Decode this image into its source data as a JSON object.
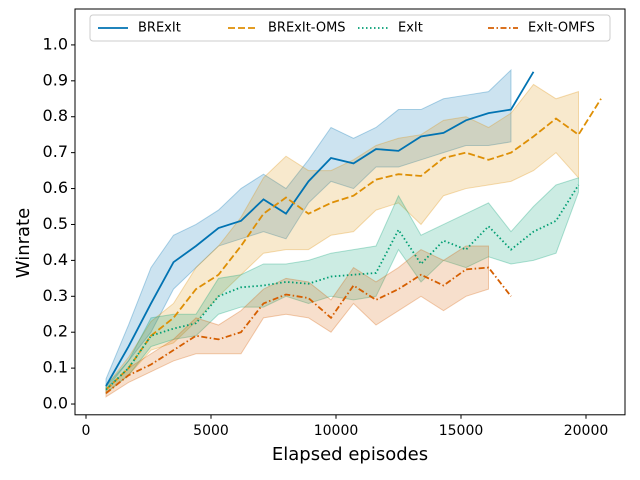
{
  "chart_data": {
    "type": "line",
    "xlabel": "Elapsed episodes",
    "ylabel": "Winrate",
    "xlim": [
      -440,
      21560
    ],
    "ylim": [
      -0.03,
      1.1
    ],
    "xticks": [
      0,
      5000,
      10000,
      15000,
      20000
    ],
    "yticks": [
      {
        "value": 0,
        "label": "0.0"
      },
      {
        "value": 0.1,
        "label": "0.1"
      },
      {
        "value": 0.2,
        "label": "0.2"
      },
      {
        "value": 0.3,
        "label": "0.3"
      },
      {
        "value": 0.4,
        "label": "0.4"
      },
      {
        "value": 0.5,
        "label": "0.5"
      },
      {
        "value": 0.6,
        "label": "0.6"
      },
      {
        "value": 0.7,
        "label": "0.7"
      },
      {
        "value": 0.8,
        "label": "0.8"
      },
      {
        "value": 0.9,
        "label": "0.9"
      },
      {
        "value": 1,
        "label": "1.0"
      }
    ],
    "legend": "upper center",
    "series": [
      {
        "name": "BRExIt",
        "color": "#0173b2",
        "linestyle": "solid",
        "x": [
          800,
          1700,
          2600,
          3500,
          4400,
          5300,
          6200,
          7100,
          8000,
          8900,
          9800,
          10700,
          11600,
          12500,
          13400,
          14300,
          15200,
          16100,
          17000,
          17900
        ],
        "values": [
          0.05,
          0.16,
          0.28,
          0.395,
          0.44,
          0.49,
          0.51,
          0.57,
          0.53,
          0.62,
          0.685,
          0.67,
          0.71,
          0.705,
          0.745,
          0.755,
          0.79,
          0.81,
          0.82,
          0.925
        ],
        "lower": [
          0.04,
          0.12,
          0.2,
          0.32,
          0.38,
          0.44,
          0.46,
          0.48,
          0.46,
          0.56,
          0.62,
          0.6,
          0.66,
          0.66,
          0.68,
          0.7,
          0.72,
          0.72,
          0.73,
          null
        ],
        "upper": [
          0.07,
          0.22,
          0.38,
          0.47,
          0.5,
          0.54,
          0.6,
          0.64,
          0.6,
          0.68,
          0.77,
          0.74,
          0.77,
          0.82,
          0.82,
          0.85,
          0.86,
          0.87,
          0.93,
          null
        ]
      },
      {
        "name": "BRExIt-OMS",
        "color": "#de8f05",
        "linestyle": "dashed",
        "x": [
          800,
          1700,
          2600,
          3500,
          4400,
          5300,
          6200,
          7100,
          8000,
          8900,
          9800,
          10700,
          11600,
          12500,
          13400,
          14300,
          15200,
          16100,
          17000,
          17900,
          18800,
          19700,
          20600
        ],
        "values": [
          0.04,
          0.1,
          0.19,
          0.24,
          0.32,
          0.36,
          0.44,
          0.53,
          0.575,
          0.53,
          0.56,
          0.58,
          0.625,
          0.64,
          0.635,
          0.685,
          0.7,
          0.68,
          0.7,
          0.745,
          0.795,
          0.75,
          0.85
        ],
        "lower": [
          0.03,
          0.08,
          0.15,
          0.17,
          0.23,
          0.3,
          0.36,
          0.42,
          0.43,
          0.43,
          0.47,
          0.48,
          0.54,
          0.56,
          0.5,
          0.58,
          0.6,
          0.61,
          0.62,
          0.65,
          0.7,
          0.63,
          null
        ],
        "upper": [
          0.05,
          0.13,
          0.23,
          0.28,
          0.38,
          0.44,
          0.52,
          0.63,
          0.69,
          0.65,
          0.65,
          0.68,
          0.72,
          0.74,
          0.75,
          0.79,
          0.8,
          0.77,
          0.81,
          0.89,
          0.85,
          0.87,
          null
        ]
      },
      {
        "name": "ExIt",
        "color": "#029e73",
        "linestyle": "dotted",
        "x": [
          800,
          1700,
          2600,
          3500,
          4400,
          5300,
          6200,
          7100,
          8000,
          8900,
          9800,
          10700,
          11600,
          12500,
          13400,
          14300,
          15200,
          16100,
          17000,
          17900,
          18800,
          19700
        ],
        "values": [
          0.04,
          0.1,
          0.19,
          0.21,
          0.225,
          0.3,
          0.325,
          0.33,
          0.34,
          0.335,
          0.355,
          0.36,
          0.365,
          0.485,
          0.39,
          0.455,
          0.43,
          0.495,
          0.43,
          0.48,
          0.51,
          0.61
        ],
        "lower": [
          0.03,
          0.08,
          0.16,
          0.18,
          0.19,
          0.25,
          0.27,
          0.27,
          0.3,
          0.28,
          0.3,
          0.29,
          0.3,
          0.43,
          0.34,
          0.4,
          0.38,
          0.41,
          0.39,
          0.4,
          0.42,
          0.59
        ],
        "upper": [
          0.05,
          0.12,
          0.24,
          0.25,
          0.25,
          0.35,
          0.36,
          0.39,
          0.39,
          0.4,
          0.42,
          0.43,
          0.44,
          0.58,
          0.47,
          0.5,
          0.53,
          0.56,
          0.48,
          0.55,
          0.61,
          0.63
        ]
      },
      {
        "name": "ExIt-OMFS",
        "color": "#d55e00",
        "linestyle": "dashdot",
        "x": [
          800,
          1700,
          2600,
          3500,
          4400,
          5300,
          6200,
          7100,
          8000,
          8900,
          9800,
          10700,
          11600,
          12500,
          13400,
          14300,
          15200,
          16100,
          17000
        ],
        "values": [
          0.03,
          0.08,
          0.11,
          0.15,
          0.19,
          0.18,
          0.2,
          0.28,
          0.305,
          0.295,
          0.24,
          0.33,
          0.29,
          0.32,
          0.36,
          0.33,
          0.375,
          0.38,
          0.3
        ],
        "lower": [
          0.02,
          0.06,
          0.09,
          0.12,
          0.14,
          0.14,
          0.14,
          0.24,
          0.25,
          0.24,
          0.2,
          0.28,
          0.22,
          0.26,
          0.3,
          0.26,
          0.3,
          0.32,
          null
        ],
        "upper": [
          0.04,
          0.1,
          0.14,
          0.18,
          0.24,
          0.22,
          0.26,
          0.32,
          0.35,
          0.34,
          0.29,
          0.38,
          0.34,
          0.38,
          0.43,
          0.4,
          0.44,
          0.44,
          null
        ]
      }
    ]
  }
}
